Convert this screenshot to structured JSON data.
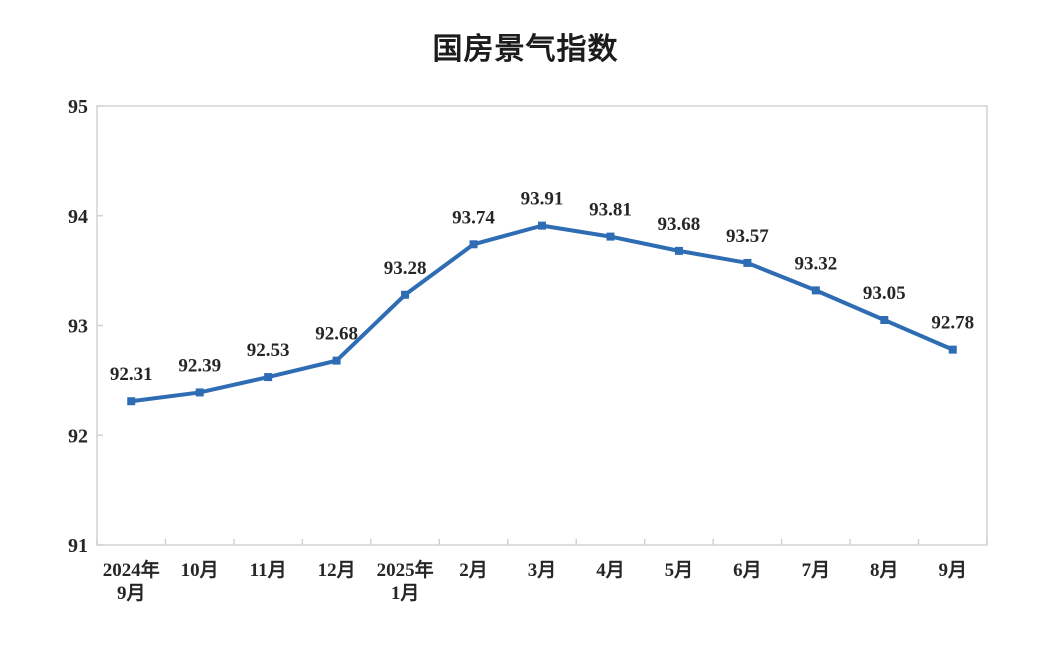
{
  "page": {
    "background": "#ffffff"
  },
  "chart_data": {
    "type": "line",
    "title": "国房景气指数",
    "categories": [
      [
        "2024年",
        "9月"
      ],
      [
        "10月"
      ],
      [
        "11月"
      ],
      [
        "12月"
      ],
      [
        "2025年",
        "1月"
      ],
      [
        "2月"
      ],
      [
        "3月"
      ],
      [
        "4月"
      ],
      [
        "5月"
      ],
      [
        "6月"
      ],
      [
        "7月"
      ],
      [
        "8月"
      ],
      [
        "9月"
      ]
    ],
    "series": [
      {
        "name": "国房景气指数",
        "values": [
          92.31,
          92.39,
          92.53,
          92.68,
          93.28,
          93.74,
          93.91,
          93.81,
          93.68,
          93.57,
          93.32,
          93.05,
          92.78
        ]
      }
    ],
    "data_labels": [
      "92.31",
      "92.39",
      "92.53",
      "92.68",
      "93.28",
      "93.74",
      "93.91",
      "93.81",
      "93.68",
      "93.57",
      "93.32",
      "93.05",
      "92.78"
    ],
    "ylim": [
      91,
      95
    ],
    "yticks": [
      91,
      92,
      93,
      94,
      95
    ],
    "grid": false,
    "legend": "none",
    "line_color": "#2e6db4",
    "marker": "square",
    "axis_color": "#cfcfcf",
    "text_color": "#262626"
  }
}
